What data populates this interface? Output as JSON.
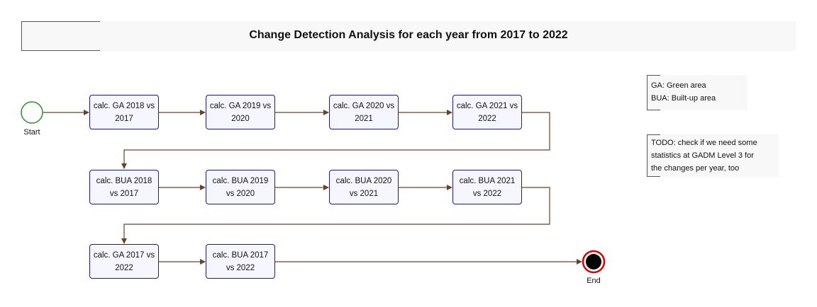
{
  "title": "Change Detection Analysis for each year from 2017 to 2022",
  "start_label": "Start",
  "end_label": "End",
  "rows": [
    [
      {
        "l1": "calc. GA 2018 vs",
        "l2": "2017"
      },
      {
        "l1": "calc. GA 2019 vs",
        "l2": "2020"
      },
      {
        "l1": "calc. GA 2020 vs",
        "l2": "2021"
      },
      {
        "l1": "calc. GA 2021 vs",
        "l2": "2022"
      }
    ],
    [
      {
        "l1": "calc. BUA 2018",
        "l2": "vs 2017"
      },
      {
        "l1": "calc. BUA 2019",
        "l2": "vs 2020"
      },
      {
        "l1": "calc. BUA 2020",
        "l2": "vs 2021"
      },
      {
        "l1": "calc. BUA 2021",
        "l2": "vs 2022"
      }
    ],
    [
      {
        "l1": "calc. GA 2017 vs",
        "l2": "2022"
      },
      {
        "l1": "calc. BUA 2017",
        "l2": "vs 2022"
      }
    ]
  ],
  "legend_note": {
    "lines": [
      "GA: Green area",
      "BUA: Built-up area"
    ]
  },
  "todo_note": {
    "lines": [
      "TODO: check if we need some",
      "statistics at GADM Level 3 for",
      "the changes per year, too"
    ]
  },
  "colors": {
    "node_border": "#1c1c8a",
    "node_fill": "#f6f6ff",
    "arrow": "#6b4226",
    "start": "#2e8b2e",
    "end_ring": "#dd0000",
    "end_fill": "#000000"
  }
}
